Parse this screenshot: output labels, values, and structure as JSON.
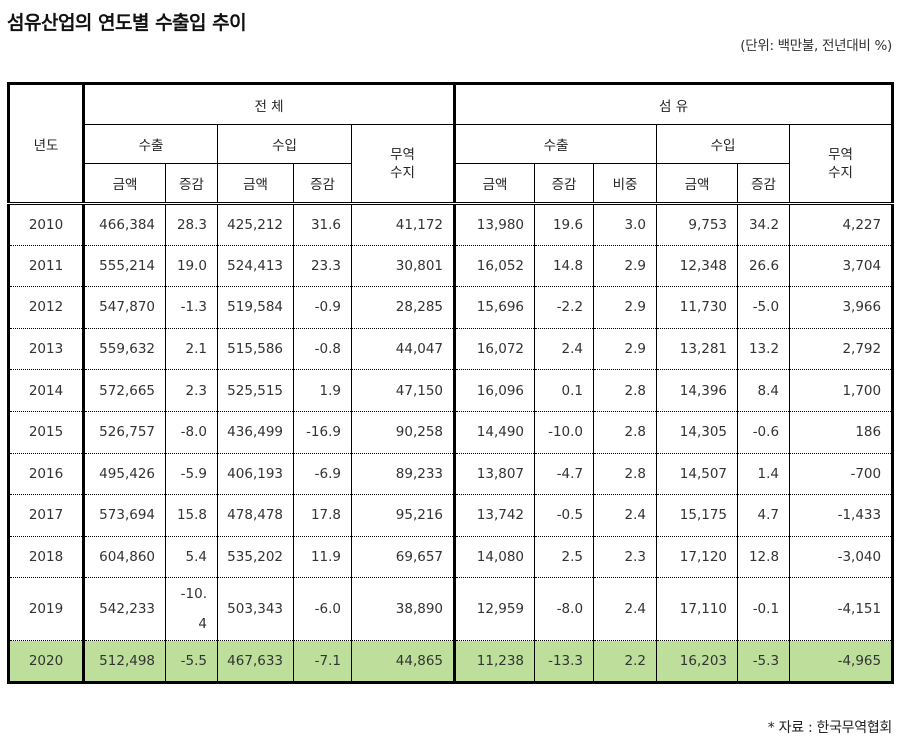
{
  "title": "섬유산업의 연도별 수출입 추이",
  "unit_note": "(단위: 백만불, 전년대비 %)",
  "source_note": "* 자료 : 한국무역협회",
  "highlight_color": "#bddf9b",
  "header": {
    "year": "년도",
    "total": "전 체",
    "textile": "섬 유",
    "export": "수출",
    "import": "수입",
    "trade_balance_line1": "무역",
    "trade_balance_line2": "수지",
    "amount": "금액",
    "change": "증감",
    "share": "비중"
  },
  "rows": [
    {
      "year": "2010",
      "total_export": "466,384",
      "total_export_chg": "28.3",
      "total_import": "425,212",
      "total_import_chg": "31.6",
      "total_balance": "41,172",
      "tex_export": "13,980",
      "tex_export_chg": "19.6",
      "tex_share": "3.0",
      "tex_import": "9,753",
      "tex_import_chg": "34.2",
      "tex_balance": "4,227"
    },
    {
      "year": "2011",
      "total_export": "555,214",
      "total_export_chg": "19.0",
      "total_import": "524,413",
      "total_import_chg": "23.3",
      "total_balance": "30,801",
      "tex_export": "16,052",
      "tex_export_chg": "14.8",
      "tex_share": "2.9",
      "tex_import": "12,348",
      "tex_import_chg": "26.6",
      "tex_balance": "3,704"
    },
    {
      "year": "2012",
      "total_export": "547,870",
      "total_export_chg": "-1.3",
      "total_import": "519,584",
      "total_import_chg": "-0.9",
      "total_balance": "28,285",
      "tex_export": "15,696",
      "tex_export_chg": "-2.2",
      "tex_share": "2.9",
      "tex_import": "11,730",
      "tex_import_chg": "-5.0",
      "tex_balance": "3,966"
    },
    {
      "year": "2013",
      "total_export": "559,632",
      "total_export_chg": "2.1",
      "total_import": "515,586",
      "total_import_chg": "-0.8",
      "total_balance": "44,047",
      "tex_export": "16,072",
      "tex_export_chg": "2.4",
      "tex_share": "2.9",
      "tex_import": "13,281",
      "tex_import_chg": "13.2",
      "tex_balance": "2,792"
    },
    {
      "year": "2014",
      "total_export": "572,665",
      "total_export_chg": "2.3",
      "total_import": "525,515",
      "total_import_chg": "1.9",
      "total_balance": "47,150",
      "tex_export": "16,096",
      "tex_export_chg": "0.1",
      "tex_share": "2.8",
      "tex_import": "14,396",
      "tex_import_chg": "8.4",
      "tex_balance": "1,700"
    },
    {
      "year": "2015",
      "total_export": "526,757",
      "total_export_chg": "-8.0",
      "total_import": "436,499",
      "total_import_chg": "-16.9",
      "total_balance": "90,258",
      "tex_export": "14,490",
      "tex_export_chg": "-10.0",
      "tex_share": "2.8",
      "tex_import": "14,305",
      "tex_import_chg": "-0.6",
      "tex_balance": "186"
    },
    {
      "year": "2016",
      "total_export": "495,426",
      "total_export_chg": "-5.9",
      "total_import": "406,193",
      "total_import_chg": "-6.9",
      "total_balance": "89,233",
      "tex_export": "13,807",
      "tex_export_chg": "-4.7",
      "tex_share": "2.8",
      "tex_import": "14,507",
      "tex_import_chg": "1.4",
      "tex_balance": "-700"
    },
    {
      "year": "2017",
      "total_export": "573,694",
      "total_export_chg": "15.8",
      "total_import": "478,478",
      "total_import_chg": "17.8",
      "total_balance": "95,216",
      "tex_export": "13,742",
      "tex_export_chg": "-0.5",
      "tex_share": "2.4",
      "tex_import": "15,175",
      "tex_import_chg": "4.7",
      "tex_balance": "-1,433"
    },
    {
      "year": "2018",
      "total_export": "604,860",
      "total_export_chg": "5.4",
      "total_import": "535,202",
      "total_import_chg": "11.9",
      "total_balance": "69,657",
      "tex_export": "14,080",
      "tex_export_chg": "2.5",
      "tex_share": "2.3",
      "tex_import": "17,120",
      "tex_import_chg": "12.8",
      "tex_balance": "-3,040"
    },
    {
      "year": "2019",
      "total_export": "542,233",
      "total_export_chg": "-10.4",
      "total_export_chg_wrapped": [
        "-10.",
        "4"
      ],
      "total_import": "503,343",
      "total_import_chg": "-6.0",
      "total_balance": "38,890",
      "tex_export": "12,959",
      "tex_export_chg": "-8.0",
      "tex_share": "2.4",
      "tex_import": "17,110",
      "tex_import_chg": "-0.1",
      "tex_balance": "-4,151"
    },
    {
      "year": "2020",
      "total_export": "512,498",
      "total_export_chg": "-5.5",
      "total_import": "467,633",
      "total_import_chg": "-7.1",
      "total_balance": "44,865",
      "tex_export": "11,238",
      "tex_export_chg": "-13.3",
      "tex_share": "2.2",
      "tex_import": "16,203",
      "tex_import_chg": "-5.3",
      "tex_balance": "-4,965",
      "highlighted": true
    }
  ]
}
